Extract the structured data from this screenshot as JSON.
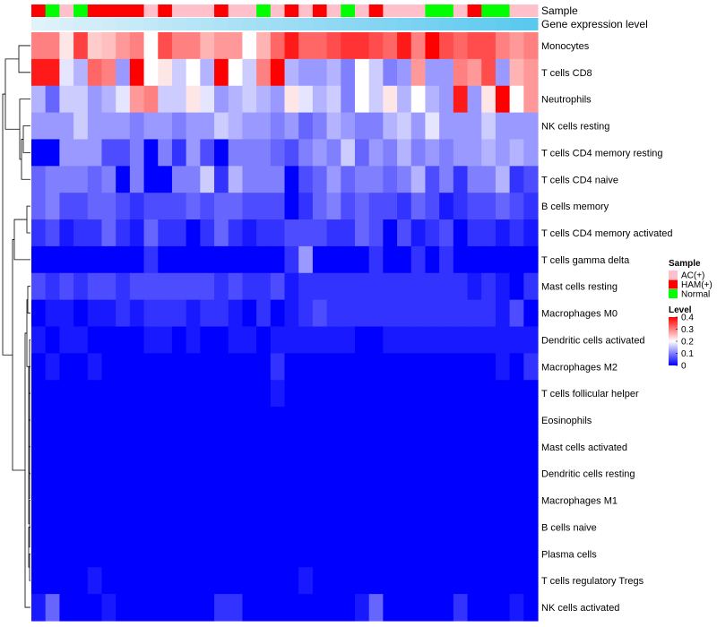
{
  "chart_data": {
    "type": "heatmap",
    "annotation_labels": [
      "Sample",
      "Gene expression level"
    ],
    "rows": [
      "Monocytes",
      "T cells CD8",
      "Neutrophils",
      "NK cells resting",
      "T cells CD4 memory resting",
      "T cells CD4 naive",
      "B cells memory",
      "T cells CD4 memory activated",
      "T cells gamma delta",
      "Mast cells resting",
      "Macrophages M0",
      "Dendritic cells activated",
      "Macrophages M2",
      "T cells follicular helper",
      "Eosinophils",
      "Mast cells activated",
      "Dendritic cells resting",
      "Macrophages M1",
      "B cells naive",
      "Plasma cells",
      "T cells regulatory  Tregs",
      "NK cells activated"
    ],
    "sample_groups": [
      "HAM",
      "Normal",
      "AC",
      "Normal",
      "HAM",
      "HAM",
      "HAM",
      "HAM",
      "AC",
      "HAM",
      "AC",
      "AC",
      "AC",
      "HAM",
      "AC",
      "AC",
      "Normal",
      "AC",
      "HAM",
      "AC",
      "HAM",
      "AC",
      "Normal",
      "AC",
      "HAM",
      "AC",
      "AC",
      "AC",
      "Normal",
      "Normal",
      "AC",
      "HAM",
      "Normal",
      "Normal",
      "AC",
      "AC"
    ],
    "values": [
      [
        0.3,
        0.3,
        0.22,
        0.35,
        0.24,
        0.25,
        0.28,
        0.3,
        0.2,
        0.34,
        0.3,
        0.3,
        0.26,
        0.28,
        0.28,
        0.2,
        0.26,
        0.32,
        0.38,
        0.32,
        0.32,
        0.34,
        0.36,
        0.36,
        0.34,
        0.32,
        0.38,
        0.3,
        0.4,
        0.34,
        0.32,
        0.34,
        0.34,
        0.3,
        0.28,
        0.3
      ],
      [
        0.38,
        0.38,
        0.18,
        0.14,
        0.32,
        0.3,
        0.12,
        0.4,
        0.2,
        0.22,
        0.16,
        0.2,
        0.14,
        0.4,
        0.2,
        0.16,
        0.3,
        0.4,
        0.14,
        0.12,
        0.12,
        0.14,
        0.1,
        0.2,
        0.16,
        0.1,
        0.12,
        0.28,
        0.12,
        0.12,
        0.3,
        0.28,
        0.34,
        0.12,
        0.26,
        0.28
      ],
      [
        0.14,
        0.08,
        0.16,
        0.16,
        0.12,
        0.14,
        0.18,
        0.28,
        0.3,
        0.16,
        0.16,
        0.22,
        0.18,
        0.12,
        0.14,
        0.16,
        0.14,
        0.12,
        0.22,
        0.18,
        0.14,
        0.16,
        0.1,
        0.2,
        0.16,
        0.22,
        0.14,
        0.2,
        0.14,
        0.12,
        0.38,
        0.12,
        0.22,
        0.4,
        0.2,
        0.28
      ],
      [
        0.12,
        0.12,
        0.12,
        0.16,
        0.12,
        0.12,
        0.12,
        0.1,
        0.12,
        0.12,
        0.1,
        0.12,
        0.12,
        0.16,
        0.14,
        0.12,
        0.12,
        0.1,
        0.12,
        0.08,
        0.1,
        0.14,
        0.12,
        0.1,
        0.1,
        0.14,
        0.16,
        0.12,
        0.18,
        0.12,
        0.12,
        0.12,
        0.16,
        0.12,
        0.12,
        0.12
      ],
      [
        0.0,
        0.0,
        0.12,
        0.12,
        0.12,
        0.06,
        0.06,
        0.1,
        0.0,
        0.1,
        0.04,
        0.12,
        0.06,
        0.0,
        0.1,
        0.1,
        0.1,
        0.08,
        0.06,
        0.1,
        0.12,
        0.1,
        0.16,
        0.08,
        0.12,
        0.1,
        0.14,
        0.1,
        0.12,
        0.1,
        0.12,
        0.12,
        0.14,
        0.12,
        0.14,
        0.12
      ],
      [
        0.08,
        0.1,
        0.1,
        0.1,
        0.08,
        0.1,
        0.0,
        0.1,
        0.0,
        0.0,
        0.1,
        0.1,
        0.16,
        0.04,
        0.14,
        0.1,
        0.1,
        0.1,
        0.0,
        0.06,
        0.08,
        0.12,
        0.08,
        0.1,
        0.1,
        0.08,
        0.1,
        0.14,
        0.06,
        0.1,
        0.04,
        0.1,
        0.1,
        0.14,
        0.04,
        0.06
      ],
      [
        0.08,
        0.1,
        0.06,
        0.06,
        0.08,
        0.08,
        0.06,
        0.04,
        0.06,
        0.06,
        0.06,
        0.08,
        0.06,
        0.08,
        0.08,
        0.06,
        0.06,
        0.06,
        0.0,
        0.04,
        0.08,
        0.1,
        0.06,
        0.08,
        0.06,
        0.06,
        0.04,
        0.08,
        0.06,
        0.02,
        0.04,
        0.06,
        0.06,
        0.08,
        0.06,
        0.04
      ],
      [
        0.04,
        0.06,
        0.02,
        0.04,
        0.04,
        0.08,
        0.04,
        0.02,
        0.08,
        0.04,
        0.04,
        0.0,
        0.04,
        0.08,
        0.04,
        0.02,
        0.04,
        0.04,
        0.06,
        0.06,
        0.06,
        0.04,
        0.04,
        0.08,
        0.06,
        0.0,
        0.06,
        0.02,
        0.04,
        0.06,
        0.0,
        0.04,
        0.04,
        0.02,
        0.04,
        0.02
      ],
      [
        0.0,
        0.0,
        0.0,
        0.0,
        0.0,
        0.0,
        0.0,
        0.0,
        0.04,
        0.0,
        0.0,
        0.0,
        0.0,
        0.0,
        0.0,
        0.0,
        0.0,
        0.0,
        0.04,
        0.12,
        0.0,
        0.0,
        0.0,
        0.0,
        0.04,
        0.0,
        0.0,
        0.04,
        0.0,
        0.04,
        0.0,
        0.0,
        0.0,
        0.0,
        0.0,
        0.0
      ],
      [
        0.06,
        0.04,
        0.06,
        0.04,
        0.06,
        0.06,
        0.04,
        0.06,
        0.06,
        0.06,
        0.06,
        0.06,
        0.06,
        0.04,
        0.06,
        0.04,
        0.04,
        0.06,
        0.02,
        0.04,
        0.04,
        0.04,
        0.04,
        0.04,
        0.04,
        0.04,
        0.04,
        0.04,
        0.04,
        0.04,
        0.04,
        0.02,
        0.04,
        0.02,
        0.0,
        0.04
      ],
      [
        0.0,
        0.02,
        0.02,
        0.0,
        0.02,
        0.02,
        0.04,
        0.02,
        0.04,
        0.04,
        0.04,
        0.02,
        0.04,
        0.04,
        0.02,
        0.0,
        0.04,
        0.0,
        0.02,
        0.04,
        0.06,
        0.04,
        0.04,
        0.04,
        0.04,
        0.04,
        0.04,
        0.04,
        0.04,
        0.04,
        0.04,
        0.04,
        0.04,
        0.02,
        0.06,
        0.0
      ],
      [
        0.02,
        0.0,
        0.02,
        0.02,
        0.0,
        0.0,
        0.0,
        0.0,
        0.02,
        0.02,
        0.0,
        0.02,
        0.0,
        0.0,
        0.02,
        0.02,
        0.0,
        0.02,
        0.02,
        0.02,
        0.02,
        0.02,
        0.02,
        0.0,
        0.0,
        0.02,
        0.02,
        0.02,
        0.02,
        0.02,
        0.02,
        0.02,
        0.02,
        0.02,
        0.02,
        0.02
      ],
      [
        0.0,
        0.02,
        0.0,
        0.0,
        0.02,
        0.0,
        0.0,
        0.0,
        0.0,
        0.0,
        0.0,
        0.0,
        0.0,
        0.0,
        0.0,
        0.0,
        0.0,
        0.04,
        0.0,
        0.0,
        0.0,
        0.0,
        0.0,
        0.0,
        0.0,
        0.0,
        0.0,
        0.0,
        0.0,
        0.0,
        0.0,
        0.0,
        0.0,
        0.02,
        0.0,
        0.04
      ],
      [
        0.0,
        0.0,
        0.0,
        0.0,
        0.0,
        0.0,
        0.0,
        0.0,
        0.0,
        0.0,
        0.0,
        0.0,
        0.0,
        0.0,
        0.0,
        0.0,
        0.0,
        0.02,
        0.0,
        0.0,
        0.0,
        0.0,
        0.0,
        0.0,
        0.0,
        0.0,
        0.0,
        0.0,
        0.0,
        0.0,
        0.0,
        0.0,
        0.0,
        0.0,
        0.0,
        0.0
      ],
      [
        0.0,
        0.0,
        0.0,
        0.0,
        0.0,
        0.0,
        0.0,
        0.0,
        0.0,
        0.0,
        0.0,
        0.0,
        0.0,
        0.0,
        0.0,
        0.0,
        0.0,
        0.0,
        0.0,
        0.0,
        0.0,
        0.0,
        0.0,
        0.0,
        0.0,
        0.0,
        0.0,
        0.0,
        0.0,
        0.0,
        0.0,
        0.0,
        0.0,
        0.0,
        0.0,
        0.0
      ],
      [
        0.0,
        0.0,
        0.0,
        0.0,
        0.0,
        0.0,
        0.0,
        0.0,
        0.0,
        0.0,
        0.0,
        0.0,
        0.0,
        0.0,
        0.0,
        0.0,
        0.0,
        0.0,
        0.0,
        0.0,
        0.0,
        0.0,
        0.0,
        0.0,
        0.0,
        0.0,
        0.0,
        0.0,
        0.0,
        0.0,
        0.0,
        0.0,
        0.0,
        0.0,
        0.0,
        0.0
      ],
      [
        0.0,
        0.0,
        0.0,
        0.0,
        0.0,
        0.0,
        0.0,
        0.0,
        0.0,
        0.0,
        0.0,
        0.0,
        0.0,
        0.0,
        0.0,
        0.0,
        0.0,
        0.0,
        0.0,
        0.0,
        0.0,
        0.0,
        0.0,
        0.0,
        0.0,
        0.0,
        0.0,
        0.0,
        0.0,
        0.0,
        0.0,
        0.0,
        0.0,
        0.0,
        0.0,
        0.0
      ],
      [
        0.0,
        0.0,
        0.0,
        0.0,
        0.0,
        0.0,
        0.0,
        0.0,
        0.0,
        0.0,
        0.0,
        0.0,
        0.0,
        0.0,
        0.0,
        0.0,
        0.0,
        0.0,
        0.0,
        0.0,
        0.0,
        0.0,
        0.0,
        0.0,
        0.0,
        0.0,
        0.0,
        0.0,
        0.0,
        0.0,
        0.0,
        0.0,
        0.0,
        0.0,
        0.0,
        0.0
      ],
      [
        0.0,
        0.0,
        0.0,
        0.0,
        0.0,
        0.0,
        0.0,
        0.0,
        0.0,
        0.0,
        0.0,
        0.0,
        0.0,
        0.0,
        0.0,
        0.0,
        0.0,
        0.0,
        0.0,
        0.0,
        0.0,
        0.0,
        0.0,
        0.0,
        0.0,
        0.0,
        0.0,
        0.0,
        0.0,
        0.0,
        0.0,
        0.0,
        0.0,
        0.0,
        0.0,
        0.0
      ],
      [
        0.0,
        0.0,
        0.0,
        0.0,
        0.0,
        0.0,
        0.0,
        0.0,
        0.0,
        0.0,
        0.0,
        0.0,
        0.0,
        0.0,
        0.0,
        0.0,
        0.0,
        0.0,
        0.0,
        0.0,
        0.0,
        0.0,
        0.0,
        0.0,
        0.0,
        0.0,
        0.0,
        0.0,
        0.0,
        0.0,
        0.0,
        0.0,
        0.0,
        0.0,
        0.0,
        0.0
      ],
      [
        0.0,
        0.0,
        0.0,
        0.0,
        0.02,
        0.0,
        0.0,
        0.0,
        0.0,
        0.0,
        0.0,
        0.0,
        0.0,
        0.0,
        0.0,
        0.0,
        0.0,
        0.0,
        0.0,
        0.02,
        0.0,
        0.0,
        0.0,
        0.0,
        0.0,
        0.0,
        0.0,
        0.0,
        0.0,
        0.0,
        0.0,
        0.0,
        0.0,
        0.0,
        0.0,
        0.0
      ],
      [
        0.02,
        0.08,
        0.0,
        0.0,
        0.0,
        0.02,
        0.0,
        0.0,
        0.0,
        0.0,
        0.0,
        0.0,
        0.0,
        0.04,
        0.04,
        0.0,
        0.0,
        0.0,
        0.0,
        0.0,
        0.0,
        0.0,
        0.0,
        0.02,
        0.08,
        0.0,
        0.0,
        0.0,
        0.0,
        0.0,
        0.04,
        0.0,
        0.0,
        0.0,
        0.02,
        0.0
      ]
    ],
    "gene_expression_level": [
      0.0,
      0.03,
      0.06,
      0.09,
      0.11,
      0.14,
      0.17,
      0.2,
      0.23,
      0.26,
      0.29,
      0.31,
      0.34,
      0.37,
      0.4,
      0.43,
      0.46,
      0.49,
      0.51,
      0.54,
      0.57,
      0.6,
      0.63,
      0.66,
      0.69,
      0.71,
      0.74,
      0.77,
      0.8,
      0.83,
      0.86,
      0.89,
      0.91,
      0.94,
      0.97,
      1.0
    ],
    "legend": {
      "sample": {
        "title": "Sample",
        "entries": [
          {
            "label": "AC(+)",
            "key": "AC",
            "color": "#ffc0cb"
          },
          {
            "label": "HAM(+)",
            "key": "HAM",
            "color": "#ff0000"
          },
          {
            "label": "Normal",
            "key": "Normal",
            "color": "#00ff00"
          }
        ]
      },
      "level": {
        "title": "Level",
        "ticks": [
          "0.4",
          "0.3",
          "0.2",
          "0.1",
          "0"
        ],
        "tick_values": [
          0.4,
          0.3,
          0.2,
          0.1,
          0
        ],
        "range": [
          0,
          0.4
        ]
      }
    },
    "colorscale": {
      "low": "#0000ff",
      "mid": "#ffffff",
      "high": "#ff0000",
      "mid_value": 0.2
    },
    "gene_level_colors": {
      "low": "#e0f2fa",
      "high": "#5ac8ef"
    },
    "dendrogram": "hierarchical clustering of rows (left side)"
  }
}
